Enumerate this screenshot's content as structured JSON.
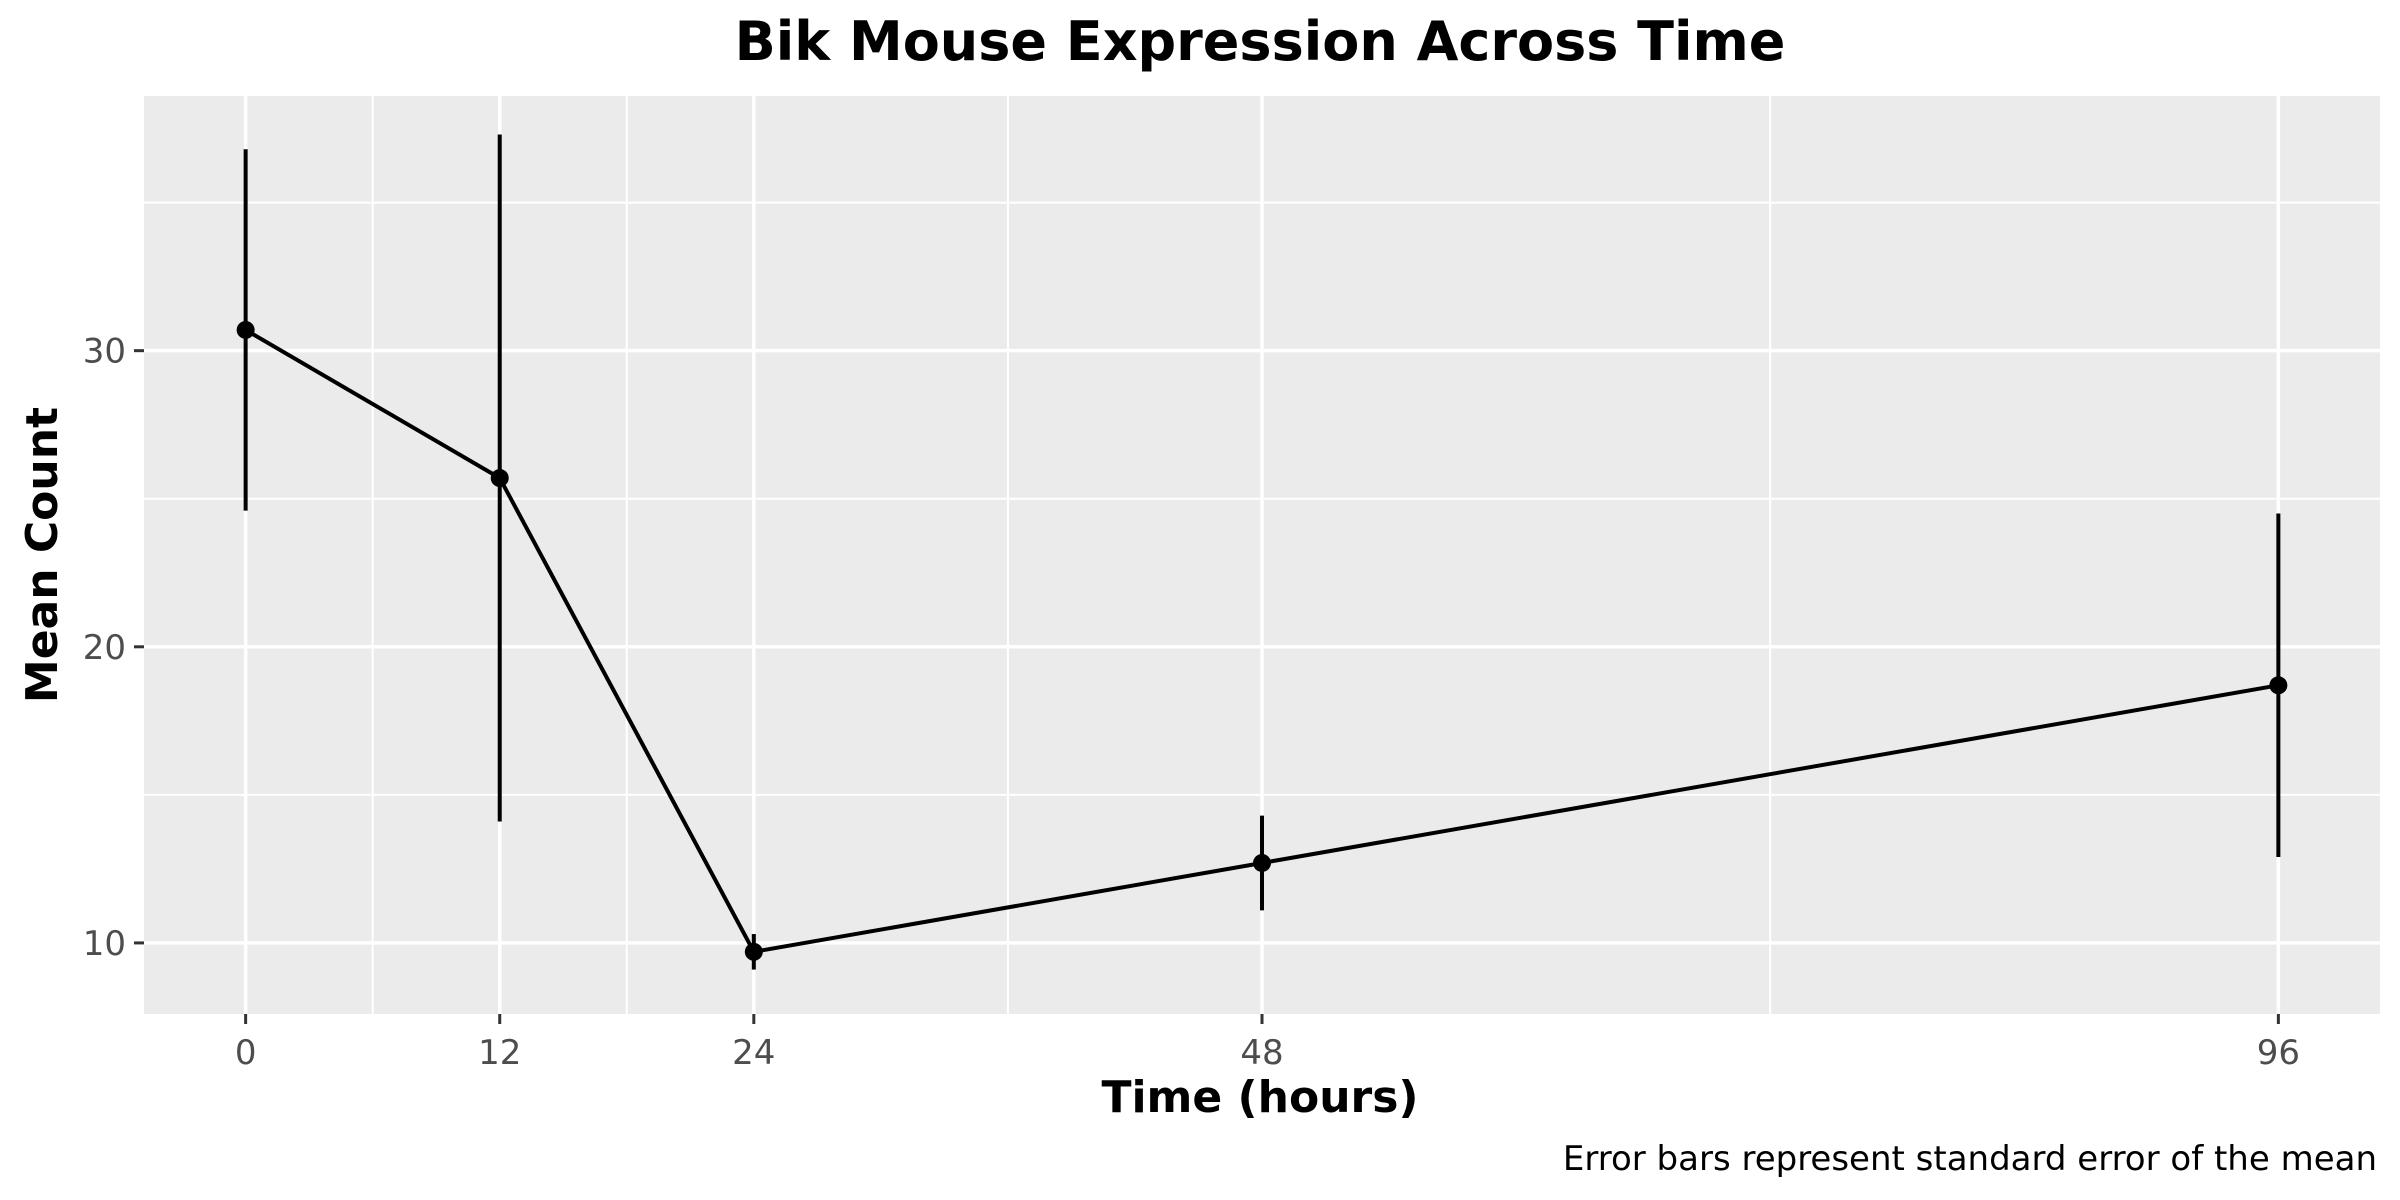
{
  "chart_data": {
    "type": "line",
    "title": "Bik Mouse Expression Across Time",
    "xlabel": "Time (hours)",
    "ylabel": "Mean Count",
    "caption": "Error bars represent standard error of the mean",
    "x": [
      0,
      12,
      24,
      48,
      96
    ],
    "series": [
      {
        "values": [
          30.7,
          25.7,
          9.7,
          12.7,
          18.7
        ],
        "error": [
          6.1,
          11.6,
          0.6,
          1.6,
          5.8
        ]
      }
    ],
    "xticks": [
      0,
      12,
      24,
      48,
      96
    ],
    "yticks": [
      10,
      20,
      30
    ],
    "xlim": [
      -4.8,
      100.8
    ],
    "ylim": [
      7.6,
      38.6
    ],
    "grid": true,
    "legend": "none",
    "colors": {
      "panel_background": "#ebebeb",
      "grid": "#ffffff",
      "line": "#000000",
      "point": "#000000"
    }
  }
}
